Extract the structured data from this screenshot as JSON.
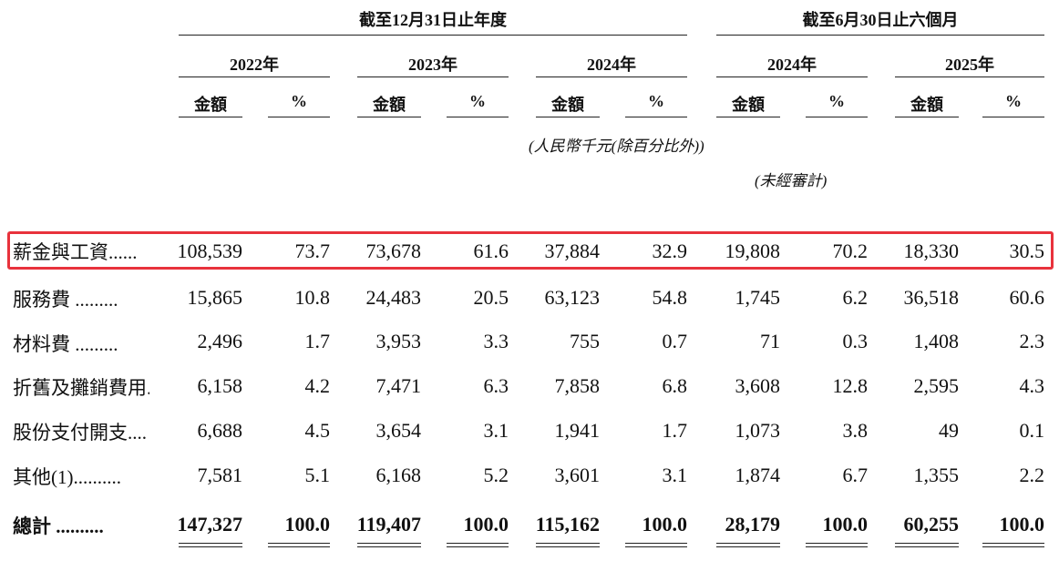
{
  "header": {
    "group1_title": "截至12月31日止年度",
    "group2_title": "截至6月30日止六個月",
    "years": [
      "2022年",
      "2023年",
      "2024年",
      "2024年",
      "2025年"
    ],
    "amount_label": "金額",
    "percent_label": "%",
    "currency_note": "(人民幣千元(除百分比外))",
    "unaudited_note": "(未經審計)"
  },
  "rows": [
    {
      "label": "薪金與工資......",
      "values": [
        "108,539",
        "73.7",
        "73,678",
        "61.6",
        "37,884",
        "32.9",
        "19,808",
        "70.2",
        "18,330",
        "30.5"
      ]
    },
    {
      "label": "服務費 .........",
      "values": [
        "15,865",
        "10.8",
        "24,483",
        "20.5",
        "63,123",
        "54.8",
        "1,745",
        "6.2",
        "36,518",
        "60.6"
      ]
    },
    {
      "label": "材料費 .........",
      "values": [
        "2,496",
        "1.7",
        "3,953",
        "3.3",
        "755",
        "0.7",
        "71",
        "0.3",
        "1,408",
        "2.3"
      ]
    },
    {
      "label": "折舊及攤銷費用..",
      "values": [
        "6,158",
        "4.2",
        "7,471",
        "6.3",
        "7,858",
        "6.8",
        "3,608",
        "12.8",
        "2,595",
        "4.3"
      ]
    },
    {
      "label": "股份支付開支....",
      "values": [
        "6,688",
        "4.5",
        "3,654",
        "3.1",
        "1,941",
        "1.7",
        "1,073",
        "3.8",
        "49",
        "0.1"
      ]
    },
    {
      "label": "其他(1)..........",
      "values": [
        "7,581",
        "5.1",
        "6,168",
        "5.2",
        "3,601",
        "3.1",
        "1,874",
        "6.7",
        "1,355",
        "2.2"
      ]
    }
  ],
  "total": {
    "label": "總計 ..........",
    "values": [
      "147,327",
      "100.0",
      "119,407",
      "100.0",
      "115,162",
      "100.0",
      "28,179",
      "100.0",
      "60,255",
      "100.0"
    ]
  },
  "highlight_color": "#e8323c"
}
